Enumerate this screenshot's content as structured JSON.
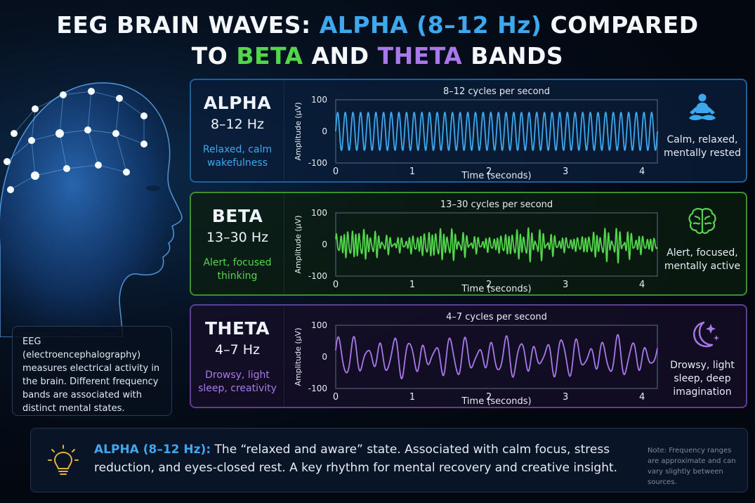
{
  "title": {
    "part1": "EEG BRAIN WAVES: ",
    "alpha": "ALPHA (8–12 Hz)",
    "part2": " COMPARED",
    "part3": "TO ",
    "beta": "BETA",
    "part4": " AND ",
    "theta": "THETA",
    "part5": " BANDS"
  },
  "colors": {
    "alpha": "#3ea8ee",
    "beta": "#54d64c",
    "theta": "#a979ea"
  },
  "panels": [
    {
      "name": "ALPHA",
      "range": "8–12 Hz",
      "desc": "Relaxed, calm wakefulness",
      "chart_title": "8–12 cycles per second",
      "state": "Calm, relaxed, mentally rested",
      "icon": "meditation-icon"
    },
    {
      "name": "BETA",
      "range": "13–30 Hz",
      "desc": "Alert, focused thinking",
      "chart_title": "13–30 cycles per second",
      "state": "Alert, focused, mentally active",
      "icon": "brain-icon"
    },
    {
      "name": "THETA",
      "range": "4–7 Hz",
      "desc": "Drowsy, light sleep, creativity",
      "chart_title": "4–7 cycles per second",
      "state": "Drowsy, light sleep, deep imagination",
      "icon": "moon-stars-icon"
    }
  ],
  "chart_data": [
    {
      "type": "line",
      "title": "8–12 cycles per second",
      "xlabel": "Time (seconds)",
      "ylabel": "Amplitude (µV)",
      "xlim": [
        0,
        4.2
      ],
      "ylim": [
        -100,
        100
      ],
      "xticks": [
        "0",
        "1",
        "2",
        "3",
        "4"
      ],
      "yticks": [
        "100",
        "0",
        "-100"
      ],
      "series": [
        {
          "frequency_hz": 10,
          "amplitude": 60,
          "pattern": "regular sinusoid"
        }
      ]
    },
    {
      "type": "line",
      "title": "13–30 cycles per second",
      "xlabel": "Time (seconds)",
      "ylabel": "Amplitude (µV)",
      "xlim": [
        0,
        4.2
      ],
      "ylim": [
        -100,
        100
      ],
      "xticks": [
        "0",
        "1",
        "2",
        "3",
        "4"
      ],
      "yticks": [
        "100",
        "0",
        "-100"
      ],
      "series": [
        {
          "frequency_hz": 20,
          "amplitude": 50,
          "pattern": "irregular fast"
        }
      ]
    },
    {
      "type": "line",
      "title": "4–7 cycles per second",
      "xlabel": "Time (seconds)",
      "ylabel": "Amplitude (µV)",
      "xlim": [
        0,
        4.2
      ],
      "ylim": [
        -100,
        100
      ],
      "xticks": [
        "0",
        "1",
        "2",
        "3",
        "4"
      ],
      "yticks": [
        "100",
        "0",
        "-100"
      ],
      "series": [
        {
          "frequency_hz": 5.5,
          "amplitude": 60,
          "pattern": "slow irregular"
        }
      ]
    }
  ],
  "eeg_info": "EEG (electroencephalography) measures electrical activity in the brain. Different frequency bands are associated with distinct mental states.",
  "footer": {
    "heading": "ALPHA (8–12 Hz):",
    "text": " The “relaxed and aware” state. Associated with calm focus, stress reduction, and eyes-closed rest. A key rhythm for mental recovery and creative insight.",
    "note": "Note: Frequency ranges are approximate and can vary slightly between sources.",
    "icon": "lightbulb-icon"
  }
}
